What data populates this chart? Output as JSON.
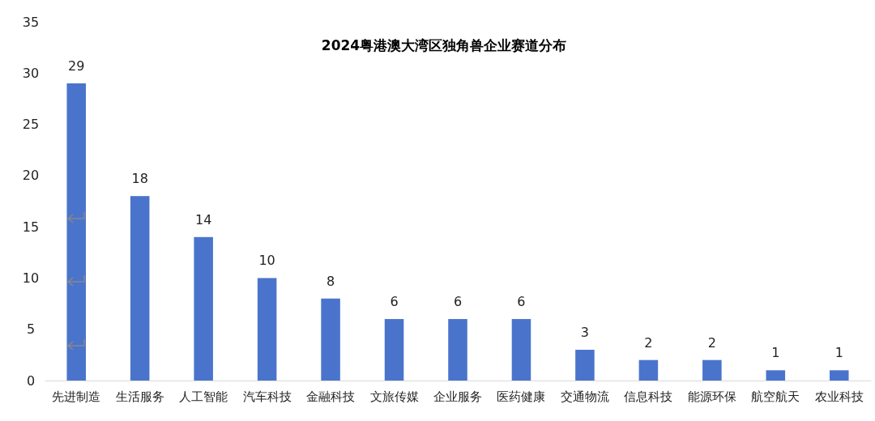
{
  "chart_data": {
    "type": "bar",
    "title": "2024粤港澳大湾区独角兽企业赛道分布",
    "categories": [
      "先进制造",
      "生活服务",
      "人工智能",
      "汽车科技",
      "金融科技",
      "文旅传媒",
      "企业服务",
      "医药健康",
      "交通物流",
      "信息科技",
      "能源环保",
      "航空航天",
      "农业科技"
    ],
    "values": [
      29,
      18,
      14,
      10,
      8,
      6,
      6,
      6,
      3,
      2,
      2,
      1,
      1
    ],
    "color": "#4a74cc",
    "ylim": [
      0,
      35
    ],
    "yticks": [
      0,
      5,
      10,
      15,
      20,
      25,
      30,
      35
    ],
    "grid": false,
    "data_labels": true
  }
}
